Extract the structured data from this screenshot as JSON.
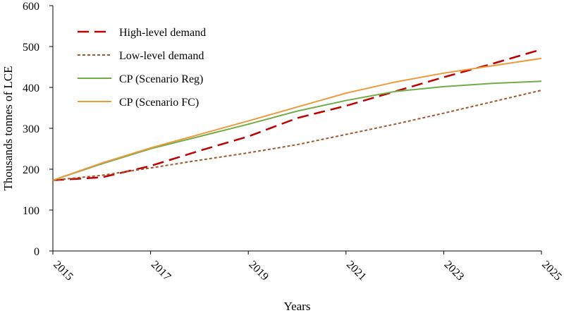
{
  "chart_data": {
    "type": "line",
    "title": "",
    "xlabel": "Years",
    "ylabel": "Thousands tonnes of LCE",
    "xlim": [
      2015,
      2025
    ],
    "ylim": [
      0,
      600
    ],
    "x_ticks": [
      "2015",
      "2017",
      "2019",
      "2021",
      "2023",
      "2025"
    ],
    "y_ticks": [
      "0",
      "100",
      "200",
      "300",
      "400",
      "500",
      "600"
    ],
    "grid": false,
    "legend_position": "top-left",
    "x": [
      2015,
      2016,
      2017,
      2018,
      2019,
      2020,
      2021,
      2022,
      2023,
      2024,
      2025
    ],
    "series": [
      {
        "name": "High-level demand",
        "color": "#C00000",
        "style": "long-dash",
        "values": [
          173,
          180,
          208,
          245,
          280,
          325,
          355,
          390,
          425,
          458,
          493
        ]
      },
      {
        "name": "Low-level demand",
        "color": "#A5562B",
        "style": "short-dash",
        "values": [
          173,
          185,
          203,
          222,
          240,
          260,
          285,
          310,
          337,
          365,
          393
        ]
      },
      {
        "name": "CP (Scenario Reg)",
        "color": "#70AD47",
        "style": "solid",
        "values": [
          173,
          213,
          250,
          280,
          310,
          342,
          368,
          390,
          402,
          410,
          415
        ]
      },
      {
        "name": "CP (Scenario FC)",
        "color": "#ED9A3C",
        "style": "solid",
        "values": [
          173,
          215,
          252,
          285,
          318,
          352,
          386,
          413,
          435,
          453,
          471
        ]
      }
    ]
  }
}
